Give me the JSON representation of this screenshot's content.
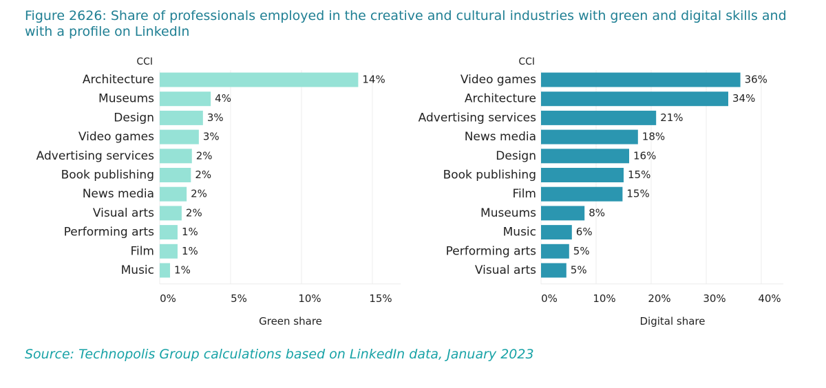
{
  "title": "Figure 2626: Share of professionals employed in the creative and cultural industries with green and digital skills and with a profile on LinkedIn",
  "source": "Source: Technopolis Group calculations based on LinkedIn data, January 2023",
  "chart_data": [
    {
      "type": "bar",
      "orientation": "horizontal",
      "ylabel": "CCI",
      "xlabel": "Green share",
      "categories": [
        "Architecture",
        "Museums",
        "Design",
        "Video games",
        "Advertising services",
        "Book publishing",
        "News media",
        "Visual arts",
        "Performing arts",
        "Film",
        "Music"
      ],
      "values": [
        14.0,
        3.6,
        3.05,
        2.76,
        2.27,
        2.2,
        1.9,
        1.55,
        1.26,
        1.26,
        0.73
      ],
      "value_labels": [
        "14%",
        "4%",
        "3%",
        "3%",
        "2%",
        "2%",
        "2%",
        "2%",
        "1%",
        "1%",
        "1%"
      ],
      "color": "#96e2d6",
      "xlim": [
        0,
        17
      ],
      "xticks": [
        {
          "value": 0,
          "label": "0%"
        },
        {
          "value": 5,
          "label": "5%"
        },
        {
          "value": 10,
          "label": "10%"
        },
        {
          "value": 15,
          "label": "15%"
        }
      ],
      "grid": true
    },
    {
      "type": "bar",
      "orientation": "horizontal",
      "ylabel": "CCI",
      "xlabel": "Digital share",
      "categories": [
        "Video games",
        "Architecture",
        "Advertising services",
        "News media",
        "Design",
        "Book publishing",
        "Film",
        "Museums",
        "Music",
        "Performing arts",
        "Visual arts"
      ],
      "values": [
        36.2,
        34.0,
        20.9,
        17.6,
        16.0,
        15.0,
        14.8,
        7.9,
        5.6,
        5.1,
        4.6
      ],
      "value_labels": [
        "36%",
        "34%",
        "21%",
        "18%",
        "16%",
        "15%",
        "15%",
        "8%",
        "6%",
        "5%",
        "5%"
      ],
      "color": "#2b96b0",
      "xlim": [
        0,
        44
      ],
      "xticks": [
        {
          "value": 0,
          "label": "0%"
        },
        {
          "value": 10,
          "label": "10%"
        },
        {
          "value": 20,
          "label": "20%"
        },
        {
          "value": 30,
          "label": "30%"
        },
        {
          "value": 40,
          "label": "40%"
        }
      ],
      "grid": true
    }
  ]
}
